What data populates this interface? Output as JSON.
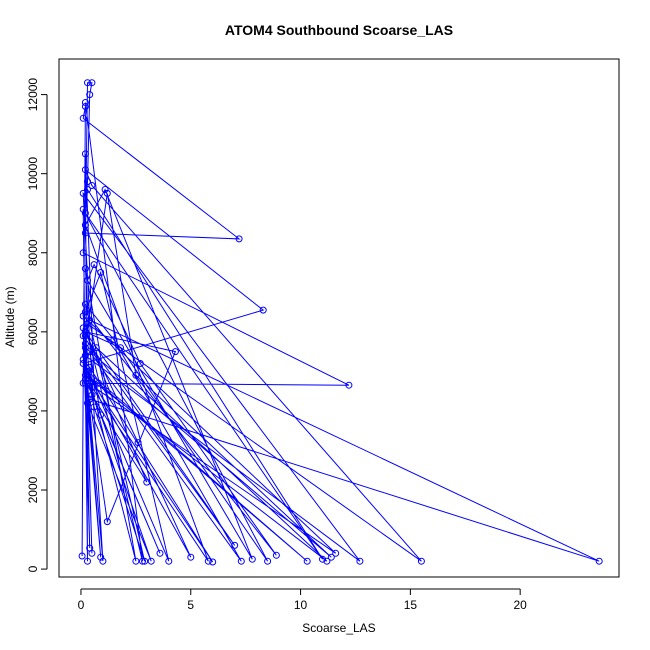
{
  "chart_data": {
    "type": "scatter",
    "title": "ATOM4 Southbound Scoarse_LAS",
    "xlabel": "Scoarse_LAS",
    "ylabel": "Altitude (m)",
    "xlim": [
      -1,
      24.5
    ],
    "ylim": [
      -200,
      12900
    ],
    "xticks": [
      0,
      5,
      10,
      15,
      20
    ],
    "yticks": [
      0,
      2000,
      4000,
      6000,
      8000,
      10000,
      12000
    ],
    "colors": {
      "series": "#0000ff",
      "axis": "#000000",
      "background": "#ffffff"
    },
    "grid": false,
    "legend": "none",
    "series": [
      {
        "points": [
          [
            0.05,
            330
          ],
          [
            0.1,
            4700
          ],
          [
            0.2,
            11700
          ],
          [
            0.1,
            11400
          ],
          [
            7.2,
            8350
          ],
          [
            0.2,
            8500
          ],
          [
            0.3,
            12300
          ],
          [
            0.5,
            12300
          ],
          [
            0.4,
            12000
          ],
          [
            0.3,
            9800
          ],
          [
            0.2,
            9000
          ],
          [
            11.0,
            250
          ],
          [
            0.3,
            9600
          ],
          [
            0.1,
            8000
          ],
          [
            12.2,
            4650
          ],
          [
            0.2,
            4700
          ],
          [
            0.1,
            5200
          ],
          [
            8.3,
            6550
          ],
          [
            0.2,
            10100
          ],
          [
            0.5,
            9700
          ],
          [
            15.5,
            200
          ],
          [
            0.3,
            6200
          ],
          [
            0.2,
            5900
          ],
          [
            0.5,
            4400
          ],
          [
            3.0,
            2200
          ],
          [
            0.2,
            6000
          ],
          [
            4.3,
            5500
          ],
          [
            1.2,
            1200
          ],
          [
            0.4,
            4300
          ],
          [
            23.6,
            200
          ],
          [
            0.4,
            6300
          ],
          [
            0.1,
            9500
          ],
          [
            12.7,
            200
          ],
          [
            0.2,
            5400
          ],
          [
            0.7,
            5600
          ],
          [
            11.2,
            200
          ],
          [
            0.2,
            4900
          ],
          [
            0.8,
            4700
          ],
          [
            10.3,
            200
          ],
          [
            0.3,
            5000
          ],
          [
            0.5,
            4600
          ],
          [
            5.8,
            200
          ],
          [
            0.2,
            8700
          ],
          [
            1.1,
            9600
          ],
          [
            7.8,
            250
          ],
          [
            0.3,
            7300
          ],
          [
            0.6,
            7700
          ],
          [
            2.7,
            5200
          ],
          [
            8.9,
            350
          ],
          [
            0.2,
            6500
          ],
          [
            0.9,
            7500
          ],
          [
            4.0,
            200
          ],
          [
            0.1,
            5300
          ],
          [
            0.4,
            5100
          ],
          [
            6.0,
            180
          ],
          [
            0.3,
            4900
          ],
          [
            0.6,
            4100
          ],
          [
            2.9,
            200
          ],
          [
            0.2,
            6700
          ],
          [
            1.5,
            5800
          ],
          [
            7.3,
            200
          ],
          [
            0.4,
            5500
          ],
          [
            0.9,
            3900
          ],
          [
            3.2,
            200
          ],
          [
            0.3,
            4200
          ],
          [
            0.5,
            400
          ],
          [
            0.2,
            5700
          ],
          [
            1.2,
            9500
          ],
          [
            2.5,
            4900
          ],
          [
            11.4,
            300
          ],
          [
            0.2,
            5600
          ],
          [
            0.4,
            530
          ],
          [
            0.1,
            6100
          ],
          [
            2.6,
            3200
          ],
          [
            5.0,
            300
          ],
          [
            0.3,
            5000
          ],
          [
            2.5,
            200
          ],
          [
            0.2,
            7600
          ],
          [
            1.0,
            200
          ],
          [
            0.3,
            4700
          ],
          [
            3.6,
            400
          ],
          [
            0.2,
            4800
          ],
          [
            0.9,
            300
          ],
          [
            0.1,
            5900
          ],
          [
            7.0,
            600
          ],
          [
            0.2,
            6000
          ],
          [
            1.8,
            5600
          ],
          [
            8.5,
            200
          ],
          [
            0.1,
            9100
          ],
          [
            0.3,
            200
          ],
          [
            0.2,
            10500
          ],
          [
            0.6,
            4600
          ],
          [
            11.6,
            400
          ],
          [
            0.1,
            6400
          ],
          [
            2.8,
            200
          ],
          [
            0.2,
            11800
          ]
        ]
      }
    ]
  }
}
